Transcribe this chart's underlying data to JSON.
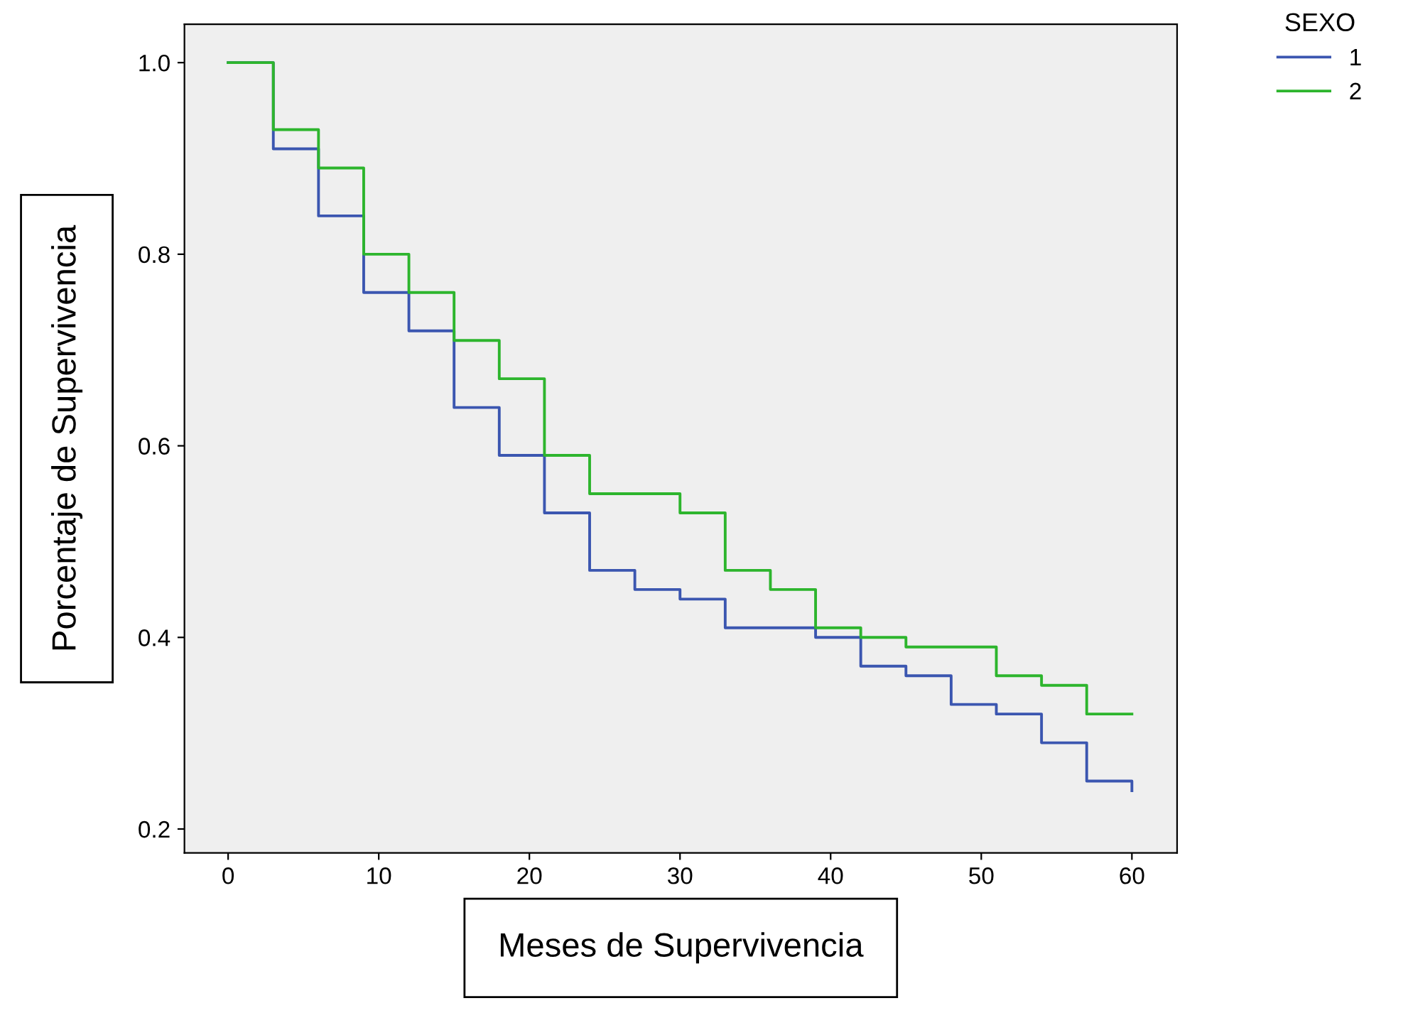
{
  "chart_data": {
    "type": "step",
    "xlabel": "Meses de Supervivencia",
    "ylabel": "Porcentaje de Supervivencia",
    "legend_title": "SEXO",
    "legend": "top right",
    "grid": false,
    "xlim": [
      -2.9,
      63
    ],
    "ylim": [
      0.175,
      1.04
    ],
    "xticks": [
      0,
      10,
      20,
      30,
      40,
      50,
      60
    ],
    "yticks": [
      0.2,
      0.4,
      0.6,
      0.8,
      {
        "value": 1.0,
        "label": "1.0"
      }
    ],
    "series": [
      {
        "name": "1",
        "color": "#3b56b0",
        "x": [
          0,
          3,
          6,
          9,
          12,
          15,
          18,
          21,
          24,
          27,
          30,
          33,
          36,
          39,
          42,
          45,
          48,
          51,
          54,
          57,
          60
        ],
        "values": [
          1.0,
          0.91,
          0.84,
          0.76,
          0.72,
          0.64,
          0.59,
          0.53,
          0.47,
          0.45,
          0.44,
          0.41,
          0.41,
          0.4,
          0.37,
          0.36,
          0.33,
          0.32,
          0.29,
          0.25,
          0.24
        ]
      },
      {
        "name": "2",
        "color": "#2db52d",
        "x": [
          0,
          3,
          6,
          9,
          12,
          15,
          18,
          21,
          24,
          27,
          30,
          33,
          36,
          39,
          42,
          45,
          48,
          51,
          54,
          57,
          60
        ],
        "values": [
          1.0,
          0.93,
          0.89,
          0.8,
          0.76,
          0.71,
          0.67,
          0.59,
          0.55,
          0.55,
          0.53,
          0.47,
          0.45,
          0.41,
          0.4,
          0.39,
          0.39,
          0.36,
          0.35,
          0.32,
          0.32
        ]
      }
    ]
  }
}
